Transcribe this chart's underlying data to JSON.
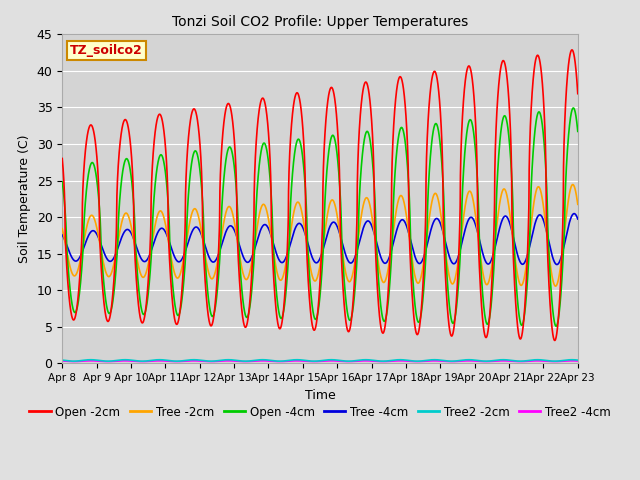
{
  "title": "Tonzi Soil CO2 Profile: Upper Temperatures",
  "xlabel": "Time",
  "ylabel": "Soil Temperature (C)",
  "watermark": "TZ_soilco2",
  "ylim": [
    0,
    45
  ],
  "xlim": [
    0,
    15
  ],
  "xtick_labels": [
    "Apr 8",
    "Apr 9",
    "Apr 10",
    "Apr 11",
    "Apr 12",
    "Apr 13",
    "Apr 14",
    "Apr 15",
    "Apr 16",
    "Apr 17",
    "Apr 18",
    "Apr 19",
    "Apr 20",
    "Apr 21",
    "Apr 22",
    "Apr 23"
  ],
  "fig_bg_color": "#e0e0e0",
  "plot_bg_color": "#d4d4d4",
  "series": {
    "open_2cm": {
      "color": "#ff0000",
      "label": "Open -2cm",
      "lw": 1.2
    },
    "tree_2cm": {
      "color": "#ffa500",
      "label": "Tree -2cm",
      "lw": 1.2
    },
    "open_4cm": {
      "color": "#00cc00",
      "label": "Open -4cm",
      "lw": 1.2
    },
    "tree_4cm": {
      "color": "#0000dd",
      "label": "Tree -4cm",
      "lw": 1.2
    },
    "tree2_2cm": {
      "color": "#00cccc",
      "label": "Tree2 -2cm",
      "lw": 1.2
    },
    "tree2_4cm": {
      "color": "#ff00ff",
      "label": "Tree2 -4cm",
      "lw": 1.2
    }
  },
  "n_days": 15,
  "points_per_day": 288
}
